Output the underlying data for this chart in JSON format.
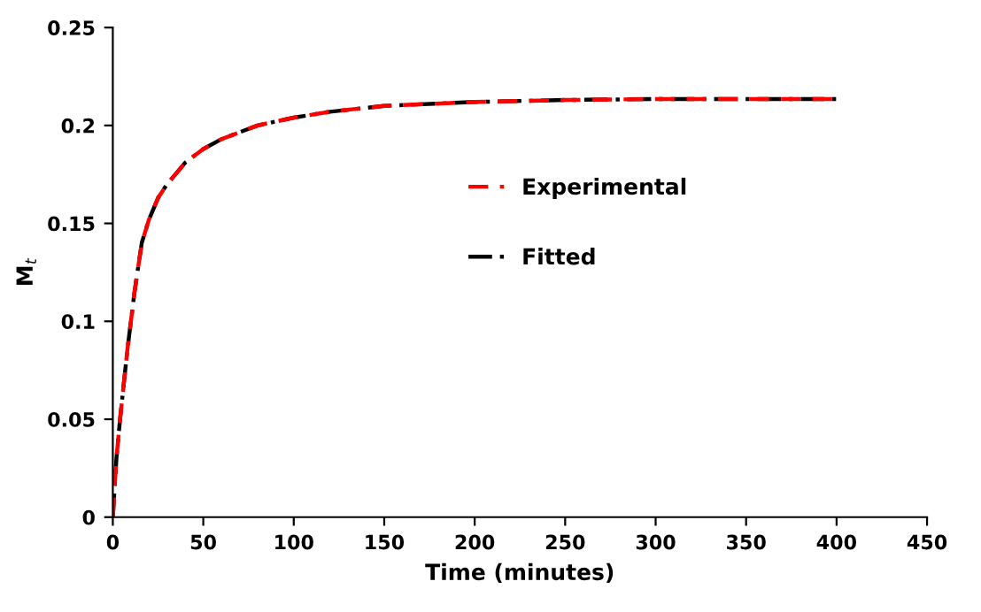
{
  "chart_data": {
    "type": "line",
    "xlabel": "Time (minutes)",
    "ylabel": "M$_{t}$",
    "x": [
      0,
      2,
      4,
      8,
      12,
      16,
      20,
      25,
      30,
      40,
      50,
      60,
      80,
      100,
      120,
      150,
      200,
      250,
      300,
      350,
      400
    ],
    "series": [
      {
        "name": "Fitted",
        "color": "#000000",
        "line_style": "dashdot",
        "values": [
          0,
          0.03,
          0.05,
          0.085,
          0.115,
          0.14,
          0.152,
          0.163,
          0.17,
          0.181,
          0.188,
          0.193,
          0.2,
          0.204,
          0.207,
          0.21,
          0.212,
          0.213,
          0.2135,
          0.2135,
          0.2135
        ]
      },
      {
        "name": "Experimental",
        "color": "#ff0000",
        "line_style": "dashed",
        "values": [
          0,
          0.03,
          0.05,
          0.085,
          0.115,
          0.14,
          0.152,
          0.163,
          0.17,
          0.181,
          0.188,
          0.193,
          0.2,
          0.204,
          0.207,
          0.21,
          0.212,
          0.213,
          0.2135,
          0.2135,
          0.2135
        ]
      }
    ],
    "xlim": [
      0,
      450
    ],
    "xticks": [
      0,
      50,
      100,
      150,
      200,
      250,
      300,
      350,
      400,
      450
    ],
    "ylim": [
      0,
      0.25
    ],
    "yticks": [
      0,
      0.05,
      0.1,
      0.15,
      0.2,
      0.25
    ],
    "grid": false,
    "legend": "right",
    "marker": "none"
  }
}
